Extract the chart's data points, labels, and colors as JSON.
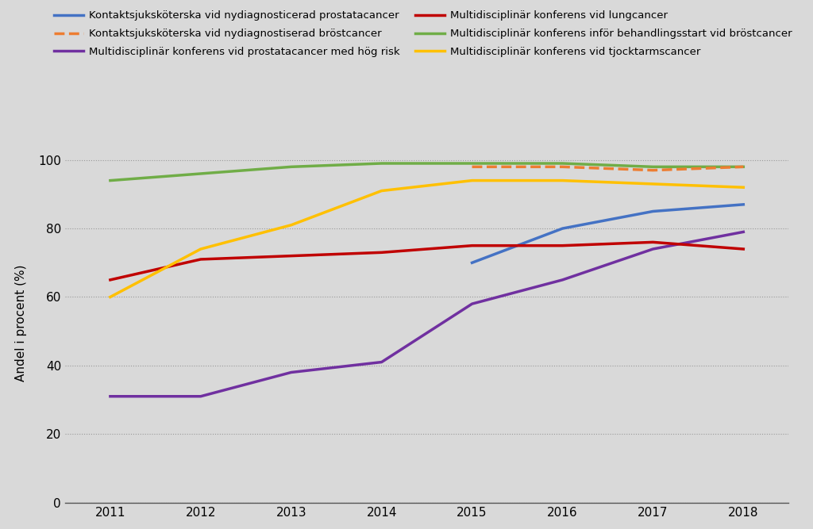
{
  "years": [
    2011,
    2012,
    2013,
    2014,
    2015,
    2016,
    2017,
    2018
  ],
  "series_col1": [
    {
      "label": "Kontaktsjuksköterska vid nydiagnosticerad prostatacancer",
      "color": "#4472C4",
      "linestyle": "solid",
      "linewidth": 2.5,
      "values": [
        null,
        null,
        null,
        null,
        70,
        80,
        85,
        87
      ]
    },
    {
      "label": "Multidisciplinär konferens vid prostatacancer med hög risk",
      "color": "#7030A0",
      "linestyle": "solid",
      "linewidth": 2.5,
      "values": [
        31,
        31,
        38,
        41,
        58,
        65,
        74,
        79
      ]
    },
    {
      "label": "Multidisciplinär konferens inför behandlingsstart vid bröstcancer",
      "color": "#70AD47",
      "linestyle": "solid",
      "linewidth": 2.5,
      "values": [
        94,
        96,
        98,
        99,
        99,
        99,
        98,
        98
      ]
    }
  ],
  "series_col2": [
    {
      "label": "Kontaktsjuksköterska vid nydiagnostiserad bröstcancer",
      "color": "#ED7D31",
      "linestyle": "dashed",
      "linewidth": 2.5,
      "values": [
        null,
        null,
        null,
        null,
        98,
        98,
        97,
        98
      ]
    },
    {
      "label": "Multidisciplinär konferens vid lungcancer",
      "color": "#C00000",
      "linestyle": "solid",
      "linewidth": 2.5,
      "values": [
        65,
        71,
        72,
        73,
        75,
        75,
        76,
        74
      ]
    },
    {
      "label": "Multidisciplinär konferens vid tjocktarmscancer",
      "color": "#FFC000",
      "linestyle": "solid",
      "linewidth": 2.5,
      "values": [
        60,
        74,
        81,
        91,
        94,
        94,
        93,
        92
      ]
    }
  ],
  "ylabel": "Andel i procent (%)",
  "ylim": [
    0,
    105
  ],
  "yticks": [
    0,
    20,
    40,
    60,
    80,
    100
  ],
  "xlim": [
    2010.5,
    2018.5
  ],
  "xticks": [
    2011,
    2012,
    2013,
    2014,
    2015,
    2016,
    2017,
    2018
  ],
  "background_color": "#D9D9D9",
  "plot_background_color": "#D9D9D9",
  "grid_color": "#999999",
  "legend_fontsize": 9.5
}
